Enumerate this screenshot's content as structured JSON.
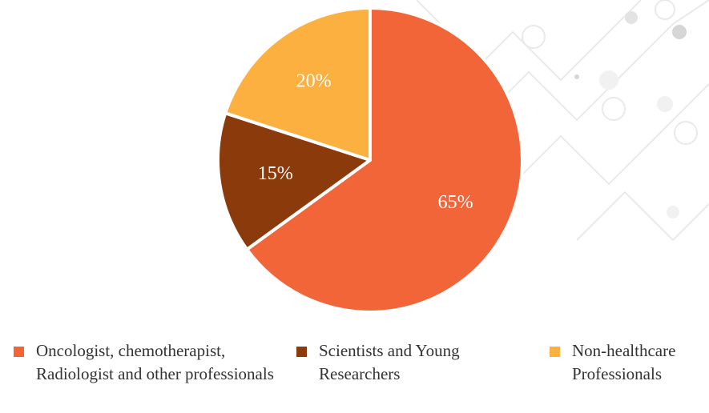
{
  "chart_data": {
    "type": "pie",
    "categories": [
      "Oncologist, chemotherapist, Radiologist and other professionals",
      "Scientists and Young Researchers",
      "Non-healthcare Professionals"
    ],
    "values": [
      65,
      15,
      20
    ],
    "value_labels": [
      "65%",
      "15%",
      "20%"
    ],
    "colors": [
      "#f26539",
      "#8b3a0b",
      "#fbb040"
    ]
  }
}
